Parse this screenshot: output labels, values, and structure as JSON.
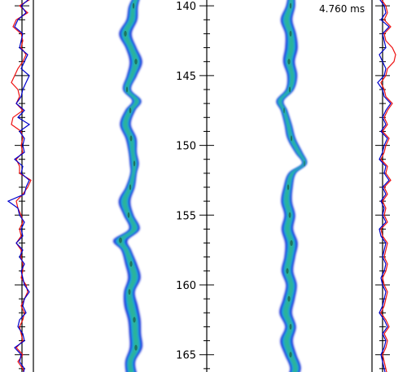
{
  "chart_data": {
    "type": "line",
    "time_label": "4.760 ms",
    "y_axis": {
      "ticks": [
        140,
        145,
        150,
        155,
        160,
        165
      ],
      "ylim": [
        139.0,
        167.0
      ],
      "minor_step": 1
    },
    "colors": {
      "profile_a": "#0000cc",
      "profile_b": "#ee1111",
      "flame_outer": "#1a2bd6",
      "flame_mid": "#1aa2ea",
      "flame_core": "#2bb39a",
      "flame_spot": "#1b6a55",
      "axis": "#000000"
    },
    "flame_left": {
      "y": [
        139.0,
        140.0,
        141.0,
        142.0,
        143.0,
        144.0,
        145.0,
        146.0,
        146.8,
        147.5,
        148.5,
        149.5,
        150.5,
        151.3,
        152.0,
        153.0,
        154.0,
        155.0,
        156.0,
        156.8,
        157.5,
        158.5,
        159.5,
        160.5,
        161.5,
        162.5,
        163.5,
        164.5,
        165.5,
        166.5,
        167.0
      ],
      "x": [
        0.55,
        0.2,
        0.1,
        -0.3,
        0.05,
        0.35,
        0.1,
        -0.2,
        0.4,
        0.0,
        -0.3,
        0.05,
        0.15,
        0.25,
        0.2,
        0.0,
        -0.35,
        -0.1,
        0.25,
        -0.6,
        -0.25,
        0.05,
        0.25,
        -0.05,
        0.05,
        0.25,
        0.3,
        0.35,
        0.0,
        0.1,
        0.2
      ],
      "w": [
        0.3,
        0.5,
        0.6,
        0.7,
        0.6,
        0.7,
        0.55,
        0.45,
        0.5,
        0.55,
        0.6,
        0.6,
        0.45,
        0.5,
        0.35,
        0.5,
        0.65,
        0.55,
        0.6,
        0.8,
        0.55,
        0.65,
        0.7,
        0.6,
        0.75,
        0.7,
        0.65,
        0.7,
        0.55,
        0.6,
        0.55
      ]
    },
    "flame_right": {
      "y": [
        139.0,
        140.0,
        141.0,
        142.0,
        143.0,
        144.0,
        145.0,
        146.0,
        146.8,
        147.5,
        148.5,
        149.5,
        150.5,
        151.3,
        152.0,
        153.0,
        154.0,
        155.0,
        156.0,
        157.0,
        158.0,
        159.0,
        160.0,
        161.0,
        162.0,
        163.0,
        164.0,
        165.0,
        166.0,
        167.0
      ],
      "x": [
        0.15,
        0.1,
        -0.15,
        0.1,
        0.15,
        0.0,
        0.2,
        0.05,
        -0.55,
        -0.3,
        -0.05,
        0.15,
        0.6,
        0.95,
        0.2,
        -0.05,
        -0.15,
        0.05,
        -0.1,
        0.15,
        0.05,
        -0.1,
        0.15,
        0.0,
        -0.2,
        0.1,
        -0.15,
        0.1,
        0.4,
        0.05
      ],
      "w": [
        0.3,
        0.5,
        0.65,
        0.6,
        0.7,
        0.65,
        0.55,
        0.45,
        0.4,
        0.35,
        0.4,
        0.45,
        0.4,
        0.25,
        0.4,
        0.5,
        0.6,
        0.6,
        0.65,
        0.7,
        0.6,
        0.65,
        0.6,
        0.65,
        0.7,
        0.6,
        0.7,
        0.65,
        0.6,
        0.55
      ]
    },
    "profile_left": {
      "y_start": 139.0,
      "y_step": 0.5,
      "blue": [
        0.55,
        0.7,
        0.45,
        0.6,
        0.35,
        0.25,
        0.5,
        0.45,
        0.4,
        0.65,
        0.55,
        0.45,
        0.7,
        0.6,
        0.5,
        0.45,
        0.3,
        0.55,
        0.35,
        0.7,
        0.4,
        0.55,
        0.5,
        0.55,
        0.25,
        0.5,
        0.45,
        0.7,
        0.6,
        0.55,
        0.05,
        0.35,
        0.4,
        0.55,
        0.45,
        0.5,
        0.3,
        0.5,
        0.4,
        0.55,
        0.45,
        0.5,
        0.55,
        0.7,
        0.55,
        0.5,
        0.6,
        0.4,
        0.35,
        0.5,
        0.55,
        0.25,
        0.45,
        0.4,
        0.55,
        0.5,
        0.65
      ],
      "red": [
        0.6,
        0.75,
        0.4,
        0.65,
        0.3,
        0.2,
        0.45,
        0.5,
        0.45,
        0.6,
        0.5,
        0.35,
        0.25,
        0.15,
        0.35,
        0.4,
        0.3,
        0.5,
        0.2,
        0.15,
        0.45,
        0.5,
        0.45,
        0.5,
        0.3,
        0.4,
        0.4,
        0.75,
        0.65,
        0.5,
        0.3,
        0.35,
        0.45,
        0.5,
        0.4,
        0.45,
        0.3,
        0.45,
        0.45,
        0.5,
        0.5,
        0.45,
        0.6,
        0.65,
        0.55,
        0.45,
        0.55,
        0.5,
        0.4,
        0.45,
        0.5,
        0.3,
        0.5,
        0.35,
        0.5,
        0.55,
        0.6
      ]
    },
    "profile_right": {
      "y_start": 139.0,
      "y_step": 0.5,
      "blue": [
        0.45,
        0.35,
        0.5,
        0.55,
        0.4,
        0.65,
        0.45,
        0.5,
        0.55,
        0.35,
        0.45,
        0.55,
        0.5,
        0.3,
        0.45,
        0.5,
        0.7,
        0.55,
        0.45,
        0.55,
        0.4,
        0.6,
        0.5,
        0.45,
        0.35,
        0.55,
        0.5,
        0.65,
        0.45,
        0.55,
        0.4,
        0.5,
        0.45,
        0.55,
        0.35,
        0.4,
        0.55,
        0.5,
        0.45,
        0.55,
        0.5,
        0.4,
        0.45,
        0.55,
        0.5,
        0.45,
        0.35,
        0.5,
        0.6,
        0.45,
        0.55,
        0.5,
        0.4,
        0.45,
        0.5,
        0.55,
        0.45
      ],
      "red": [
        0.5,
        0.4,
        0.55,
        0.6,
        0.5,
        0.7,
        0.5,
        0.55,
        0.75,
        0.85,
        0.8,
        0.6,
        0.55,
        0.4,
        0.5,
        0.55,
        0.75,
        0.6,
        0.5,
        0.6,
        0.45,
        0.65,
        0.55,
        0.5,
        0.4,
        0.6,
        0.55,
        0.7,
        0.5,
        0.6,
        0.45,
        0.55,
        0.5,
        0.6,
        0.4,
        0.45,
        0.6,
        0.55,
        0.5,
        0.6,
        0.55,
        0.45,
        0.5,
        0.6,
        0.55,
        0.5,
        0.4,
        0.55,
        0.65,
        0.5,
        0.6,
        0.55,
        0.45,
        0.5,
        0.55,
        0.6,
        0.5
      ]
    }
  }
}
